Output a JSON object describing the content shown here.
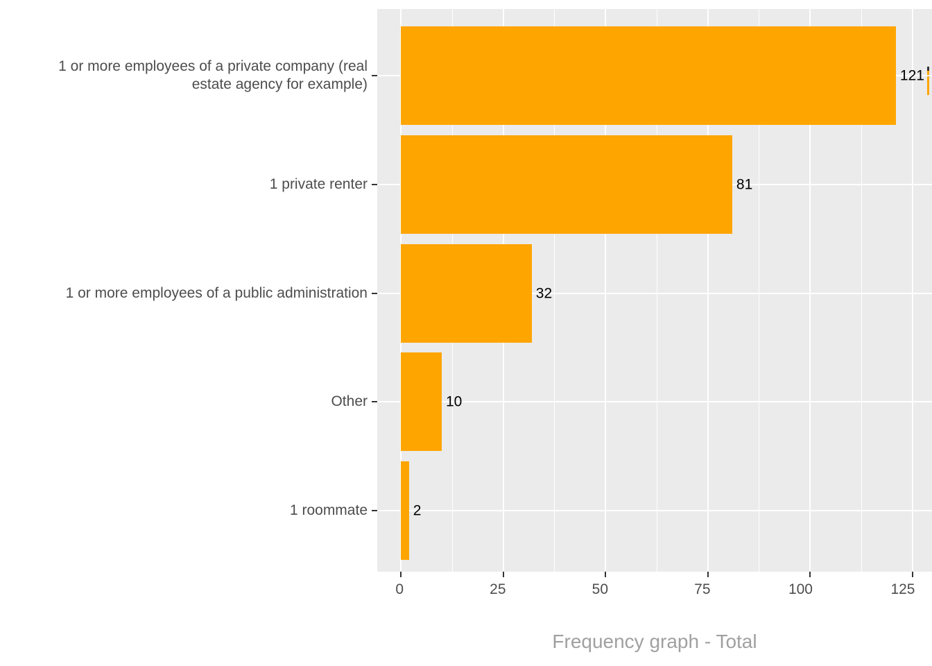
{
  "chart_data": {
    "type": "bar",
    "orientation": "horizontal",
    "title": "Frequency graph - Total",
    "categories": [
      "1 or more employees of a private company (real estate agency for example)",
      "1 private renter",
      "1 or more employees of a public administration",
      "Other",
      "1 roommate"
    ],
    "values": [
      121,
      81,
      32,
      10,
      2
    ],
    "x_ticks": [
      0,
      25,
      50,
      75,
      100,
      125
    ],
    "x_tick_labels": [
      "0",
      "25",
      "50",
      "75",
      "100",
      "125"
    ],
    "x_minor_ticks": [
      12.5,
      37.5,
      62.5,
      87.5,
      112.5
    ],
    "xlim": [
      0,
      129.8
    ],
    "ylabel": "",
    "xlabel": "Frequency graph - Total",
    "grid": "on",
    "legend": "none",
    "colors": {
      "bar": "#FFA500",
      "panel_background": "#EBEBEB",
      "gridline": "#FFFFFF",
      "axis_text": "#4D4D4D",
      "tick_mark": "#333333",
      "value_label": "#000000",
      "title": "#A0A0A0",
      "figure_background": "#FFFFFF"
    }
  }
}
